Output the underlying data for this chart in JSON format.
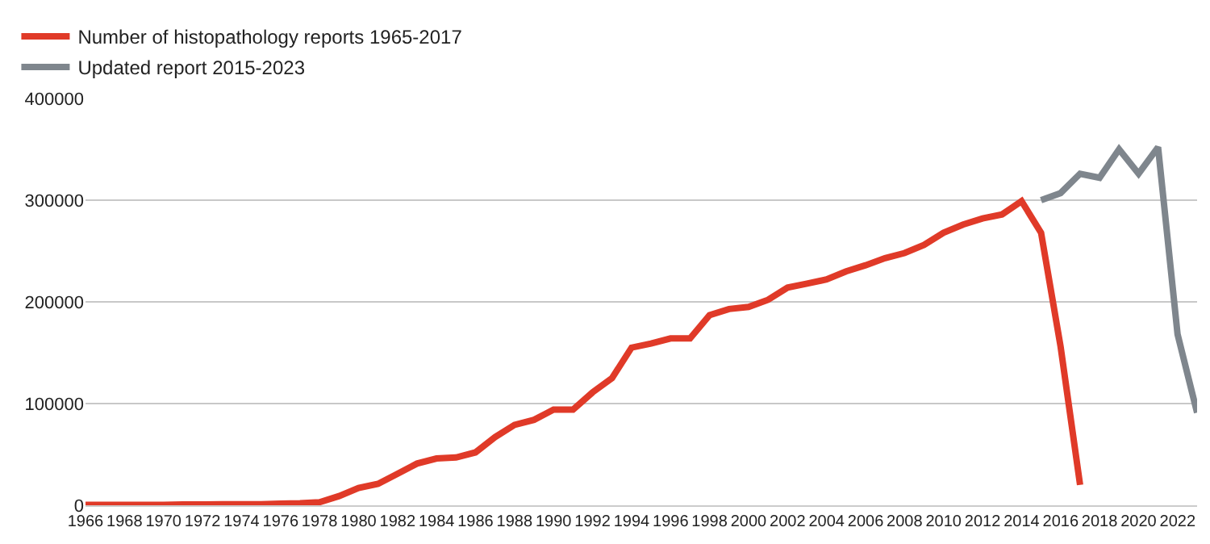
{
  "chart_data": {
    "type": "line",
    "xlim": [
      1966,
      2023
    ],
    "ylim": [
      0,
      400000
    ],
    "xticks": [
      1966,
      1968,
      1970,
      1972,
      1974,
      1976,
      1978,
      1980,
      1982,
      1984,
      1986,
      1988,
      1990,
      1992,
      1994,
      1996,
      1998,
      2000,
      2002,
      2004,
      2006,
      2008,
      2010,
      2012,
      2014,
      2016,
      2018,
      2020,
      2022
    ],
    "yticks": [
      0,
      100000,
      200000,
      300000,
      400000
    ],
    "grid": "y",
    "legend": "top left",
    "marker": "none",
    "line_style": "solid",
    "series": [
      {
        "name": "Number of histopathology reports 1965-2017",
        "color": "#e03a28",
        "x": [
          1966,
          1967,
          1968,
          1969,
          1970,
          1971,
          1972,
          1973,
          1974,
          1975,
          1976,
          1977,
          1978,
          1979,
          1980,
          1981,
          1982,
          1983,
          1984,
          1985,
          1986,
          1987,
          1988,
          1989,
          1990,
          1991,
          1992,
          1993,
          1994,
          1995,
          1996,
          1997,
          1998,
          1999,
          2000,
          2001,
          2002,
          2003,
          2004,
          2005,
          2006,
          2007,
          2008,
          2009,
          2010,
          2011,
          2012,
          2013,
          2014,
          2015,
          2016,
          2017
        ],
        "values": [
          500,
          500,
          500,
          500,
          500,
          700,
          800,
          900,
          1000,
          1000,
          1500,
          2000,
          3000,
          9000,
          17000,
          21000,
          31000,
          41000,
          46000,
          47000,
          52000,
          67000,
          79000,
          84000,
          94000,
          94000,
          111000,
          125000,
          155000,
          159000,
          164000,
          164000,
          187000,
          193000,
          195000,
          202000,
          214000,
          218000,
          222000,
          230000,
          236000,
          243000,
          248000,
          256000,
          268000,
          276000,
          282000,
          286000,
          299000,
          268000,
          156000,
          20000
        ]
      },
      {
        "name": "Updated report 2015-2023",
        "color": "#7f868d",
        "x": [
          2015,
          2016,
          2017,
          2018,
          2019,
          2020,
          2021,
          2022,
          2023
        ],
        "values": [
          300000,
          307000,
          326000,
          322000,
          350000,
          326000,
          352000,
          168000,
          91000
        ]
      }
    ]
  }
}
